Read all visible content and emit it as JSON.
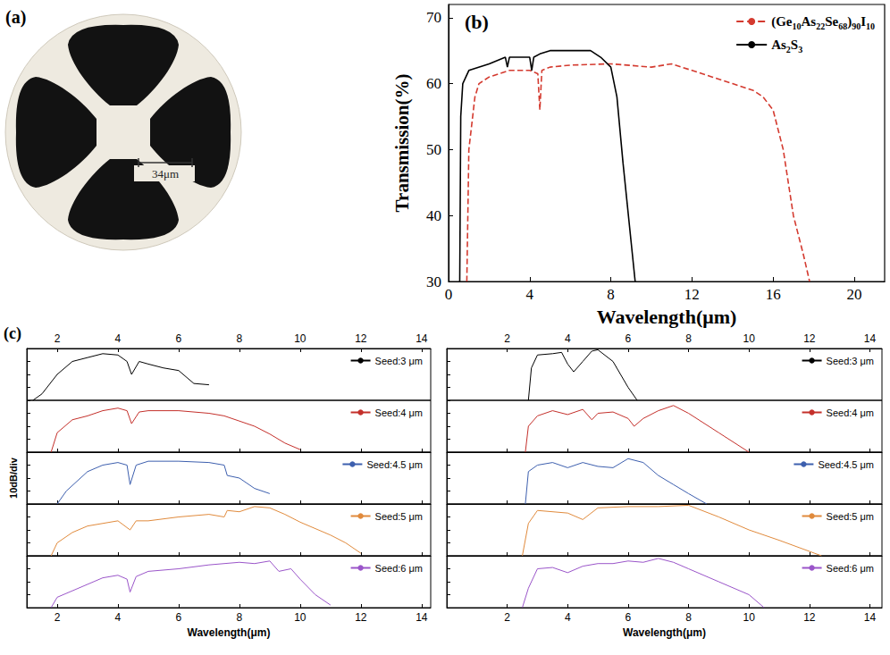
{
  "photo": {
    "label": "(a)",
    "scale_bar": "34μm"
  },
  "chart_data": [
    {
      "type": "line",
      "label": "(b)",
      "x_label": "Wavelength(μm)",
      "y_label": "Transmission(%)",
      "xlim": [
        0,
        21.5
      ],
      "xticks": [
        0,
        4,
        8,
        12,
        16,
        20
      ],
      "ylim": [
        30,
        72
      ],
      "yticks": [
        30,
        40,
        50,
        60,
        70
      ],
      "grid": false,
      "legend": "top-right",
      "series": [
        {
          "name": "(Ge10As22Se68)90I10",
          "color": "#d43a2f",
          "line_style": "dashed",
          "x": [
            0.9,
            1.0,
            1.3,
            1.5,
            2,
            3,
            4,
            4.4,
            4.5,
            4.6,
            5,
            6,
            8,
            10,
            11,
            12,
            13,
            14,
            15,
            15.5,
            16,
            16.5,
            17,
            17.5,
            17.8
          ],
          "values": [
            30,
            50,
            58,
            60,
            61,
            62,
            62,
            61.5,
            56,
            62,
            62.5,
            62.8,
            63,
            62.5,
            63,
            62,
            61,
            60,
            59,
            58,
            56,
            50,
            40,
            34,
            30
          ]
        },
        {
          "name": "As2S3",
          "color": "#000000",
          "line_style": "solid",
          "x": [
            0.55,
            0.6,
            0.7,
            1,
            2,
            2.8,
            2.9,
            3,
            3.5,
            4,
            4.1,
            4.2,
            4.5,
            5,
            6,
            7,
            7.5,
            8,
            8.3,
            8.6,
            9,
            9.2
          ],
          "values": [
            30,
            55,
            60,
            62,
            63,
            64,
            62.5,
            64,
            64,
            64,
            62,
            64,
            64.5,
            65,
            65,
            65,
            64,
            62.5,
            58,
            48,
            36,
            30
          ]
        }
      ]
    },
    {
      "type": "line",
      "label": "(c)",
      "x_label": "Wavelength(μm)",
      "y_label": "10dB/div",
      "xlim": [
        1,
        14.3
      ],
      "xticks": [
        2,
        4,
        6,
        8,
        10,
        12,
        14
      ],
      "ylim": [
        -40,
        0
      ],
      "yticks": [
        -40,
        -30,
        -20,
        -10,
        0
      ],
      "tick_labels": "x",
      "grid": false,
      "legend": "top-right",
      "series": [
        {
          "name": "Seed:3 μm",
          "color": "#000000",
          "x": [
            1.2,
            1.5,
            2,
            2.5,
            3,
            3.5,
            4,
            4.3,
            4.45,
            4.7,
            5,
            5.5,
            6,
            6.5,
            7
          ],
          "values": [
            -40,
            -35,
            -20,
            -10,
            -7,
            -4,
            -5,
            -10,
            -20,
            -10,
            -12,
            -15,
            -17,
            -27,
            -28
          ]
        },
        {
          "name": "Seed:4 μm",
          "color": "#c4302b",
          "x": [
            1.8,
            2,
            2.5,
            3,
            3.5,
            4,
            4.3,
            4.45,
            4.7,
            5,
            6,
            7,
            7.5,
            8,
            8.5,
            9,
            9.5,
            10
          ],
          "values": [
            -40,
            -25,
            -15,
            -12,
            -8,
            -6,
            -8,
            -18,
            -9,
            -8,
            -8,
            -10,
            -12,
            -16,
            -20,
            -26,
            -33,
            -38
          ]
        },
        {
          "name": "Seed:4.5 μm",
          "color": "#3d5fae",
          "x": [
            2,
            2.3,
            3,
            3.5,
            4,
            4.3,
            4.4,
            4.6,
            5,
            6,
            7,
            7.5,
            7.6,
            8,
            8.5,
            9
          ],
          "values": [
            -40,
            -30,
            -15,
            -10,
            -8,
            -10,
            -25,
            -10,
            -7,
            -7,
            -8,
            -10,
            -18,
            -20,
            -28,
            -32
          ]
        },
        {
          "name": "Seed:5 μm",
          "color": "#e08a3c",
          "x": [
            1.8,
            2,
            2.5,
            3,
            4,
            4.4,
            4.6,
            5,
            6,
            7,
            7.5,
            7.6,
            8,
            8.5,
            9,
            9.5,
            10,
            11,
            11.5,
            12
          ],
          "values": [
            -40,
            -30,
            -22,
            -17,
            -13,
            -20,
            -13,
            -13,
            -10,
            -8,
            -10,
            -5,
            -6,
            -2,
            -3,
            -8,
            -14,
            -24,
            -30,
            -38
          ]
        },
        {
          "name": "Seed:6 μm",
          "color": "#9a55c9",
          "x": [
            1.8,
            2,
            3,
            3.5,
            4,
            4.3,
            4.4,
            4.6,
            5,
            6,
            7,
            8,
            8.5,
            9,
            9.3,
            9.7,
            10,
            10.5,
            11
          ],
          "values": [
            -40,
            -32,
            -22,
            -17,
            -15,
            -18,
            -28,
            -16,
            -12,
            -10,
            -7,
            -5,
            -6,
            -4,
            -12,
            -10,
            -18,
            -30,
            -38
          ]
        }
      ]
    },
    {
      "type": "line",
      "x_label": "Wavelength(μm)",
      "xlim": [
        0,
        14.4
      ],
      "xticks": [
        2,
        4,
        6,
        8,
        10,
        12,
        14
      ],
      "ylim": [
        -40,
        0
      ],
      "yticks": [
        -40,
        -30,
        -20,
        -10,
        0
      ],
      "tick_labels": "x",
      "grid": false,
      "legend": "top-right",
      "series": [
        {
          "name": "Seed:3 μm",
          "color": "#000000",
          "x": [
            2.7,
            2.8,
            3,
            3.5,
            3.8,
            4,
            4.2,
            4.5,
            4.8,
            5,
            5.5,
            6,
            6.3
          ],
          "values": [
            -40,
            -15,
            -5,
            -4,
            -3,
            -12,
            -18,
            -10,
            -2,
            -1,
            -10,
            -30,
            -40
          ]
        },
        {
          "name": "Seed:4 μm",
          "color": "#c4302b",
          "x": [
            2.6,
            2.7,
            3,
            3.5,
            4,
            4.5,
            4.8,
            5,
            5.5,
            6,
            6.2,
            6.5,
            7,
            7.5,
            8,
            9,
            10
          ],
          "values": [
            -40,
            -20,
            -12,
            -8,
            -11,
            -7,
            -15,
            -10,
            -9,
            -14,
            -20,
            -14,
            -8,
            -4,
            -10,
            -25,
            -40
          ]
        },
        {
          "name": "Seed:4.5 μm",
          "color": "#3d5fae",
          "x": [
            2.6,
            2.7,
            3,
            3.5,
            4,
            4.5,
            5,
            5.5,
            6,
            6.5,
            7,
            7.5,
            8,
            8.6
          ],
          "values": [
            -40,
            -15,
            -10,
            -8,
            -12,
            -8,
            -11,
            -12,
            -5,
            -8,
            -18,
            -25,
            -32,
            -40
          ]
        },
        {
          "name": "Seed:5 μm",
          "color": "#e08a3c",
          "x": [
            2.5,
            2.7,
            3,
            4,
            4.5,
            5,
            6,
            7,
            8,
            9,
            10,
            11,
            12.4
          ],
          "values": [
            -40,
            -15,
            -5,
            -7,
            -12,
            -3,
            -2,
            -2,
            -1,
            -10,
            -20,
            -28,
            -40
          ]
        },
        {
          "name": "Seed:6 μm",
          "color": "#9a55c9",
          "x": [
            2.5,
            2.7,
            3,
            3.5,
            4,
            4.5,
            5,
            5.5,
            6,
            6.5,
            7,
            7.5,
            8,
            9,
            10,
            10.5
          ],
          "values": [
            -40,
            -25,
            -10,
            -9,
            -13,
            -8,
            -6,
            -6,
            -4,
            -5,
            -2,
            -5,
            -10,
            -20,
            -30,
            -40
          ]
        }
      ]
    }
  ]
}
